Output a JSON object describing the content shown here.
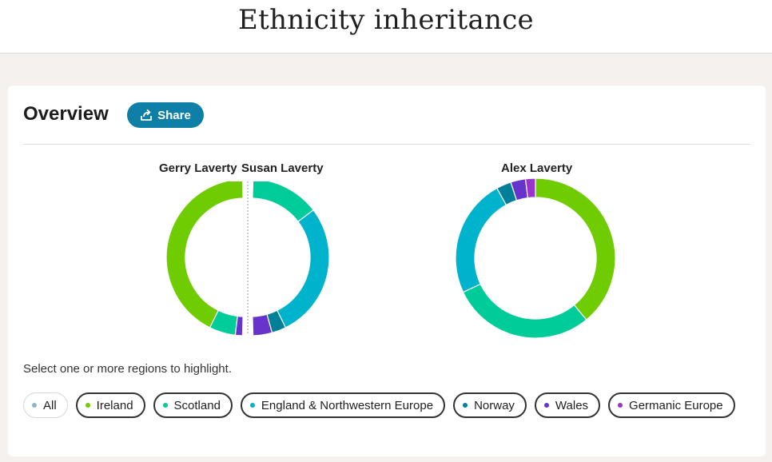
{
  "page": {
    "title": "Ethnicity inheritance"
  },
  "overview": {
    "title": "Overview",
    "share_label": "Share"
  },
  "people": {
    "parent1": "Gerry Laverty",
    "parent2": "Susan Laverty",
    "child": "Alex Laverty"
  },
  "hint": "Select one or more regions to highlight.",
  "regions": [
    {
      "label": "All",
      "color": "#8fb6c4",
      "selected": true
    },
    {
      "label": "Ireland",
      "color": "#6fcc00"
    },
    {
      "label": "Scotland",
      "color": "#00cc99"
    },
    {
      "label": "England & Northwestern Europe",
      "color": "#00b3cc"
    },
    {
      "label": "Norway",
      "color": "#007f99"
    },
    {
      "label": "Wales",
      "color": "#6633cc"
    },
    {
      "label": "Germanic Europe",
      "color": "#9933cc"
    }
  ],
  "chart_data": [
    {
      "type": "pie",
      "name": "Gerry Laverty",
      "segments": [
        {
          "region": "Ireland",
          "value": 86
        },
        {
          "region": "Scotland",
          "value": 11
        },
        {
          "region": "Wales",
          "value": 3
        }
      ]
    },
    {
      "type": "pie",
      "name": "Susan Laverty",
      "segments": [
        {
          "region": "Scotland",
          "value": 29
        },
        {
          "region": "England & Northwestern Europe",
          "value": 57
        },
        {
          "region": "Norway",
          "value": 6
        },
        {
          "region": "Wales",
          "value": 8
        }
      ]
    },
    {
      "type": "pie",
      "name": "Alex Laverty",
      "segments": [
        {
          "region": "Ireland",
          "value": 39
        },
        {
          "region": "Scotland",
          "value": 29
        },
        {
          "region": "England & Northwestern Europe",
          "value": 24
        },
        {
          "region": "Norway",
          "value": 3
        },
        {
          "region": "Wales",
          "value": 3
        },
        {
          "region": "Germanic Europe",
          "value": 2
        }
      ]
    }
  ]
}
